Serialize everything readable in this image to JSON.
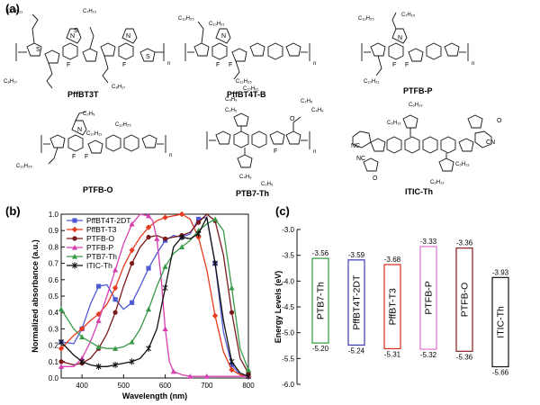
{
  "panels": {
    "a": {
      "label": "(a)",
      "molecules": [
        {
          "name": "PffBT3T"
        },
        {
          "name": "PffBT4T-B"
        },
        {
          "name": "PTFB-P"
        },
        {
          "name": "PTFB-O"
        },
        {
          "name": "PTB7-Th"
        },
        {
          "name": "ITIC-Th"
        }
      ],
      "repeat_n": "n",
      "side_chains": {
        "c10h21": "C₁₀H₂₁",
        "c12h25": "C₁₂H₂₅",
        "c7h15": "C₇H₁₅",
        "c8h17": "C₈H₁₇",
        "c2h5": "C₂H₅",
        "c4h9": "C₄H₉",
        "c6h13": "C₆H₁₃",
        "c11h23": "C₁₁H₂₃"
      },
      "atoms": {
        "s": "S",
        "n": "N",
        "f": "F",
        "o": "O",
        "cn": "CN",
        "nc": "NC"
      }
    },
    "b": {
      "label": "(b)"
    },
    "c": {
      "label": "(c)"
    }
  },
  "chart_data": [
    {
      "type": "line",
      "xlabel": "Wavelength (nm)",
      "ylabel": "Normalized absorbance (a.u.)",
      "xlim": [
        350,
        800
      ],
      "ylim": [
        0.0,
        1.0
      ],
      "xticks": [
        "400",
        "500",
        "600",
        "700",
        "800"
      ],
      "yticks": [
        "0.0",
        "0.1",
        "0.2",
        "0.3",
        "0.4",
        "0.5",
        "0.6",
        "0.7",
        "0.8",
        "0.9",
        "1.0"
      ],
      "legend_position": "top-left",
      "series": [
        {
          "name": "PffBT4T-2DT",
          "color": "#4f5bd5",
          "marker": "square",
          "x": [
            350,
            380,
            400,
            420,
            440,
            460,
            480,
            500,
            520,
            540,
            560,
            580,
            600,
            620,
            640,
            660,
            680,
            700,
            720,
            740,
            760,
            780,
            800
          ],
          "y": [
            0.22,
            0.21,
            0.3,
            0.45,
            0.56,
            0.57,
            0.48,
            0.42,
            0.46,
            0.56,
            0.67,
            0.76,
            0.84,
            0.87,
            0.86,
            0.88,
            0.97,
            0.98,
            0.7,
            0.28,
            0.08,
            0.02,
            0.01
          ]
        },
        {
          "name": "PffBT-T3",
          "color": "#e63b1f",
          "marker": "diamond",
          "x": [
            350,
            380,
            400,
            420,
            440,
            460,
            480,
            500,
            520,
            540,
            560,
            580,
            600,
            620,
            640,
            660,
            680,
            700,
            720,
            740,
            760,
            780,
            800
          ],
          "y": [
            0.18,
            0.26,
            0.3,
            0.35,
            0.39,
            0.45,
            0.55,
            0.68,
            0.78,
            0.86,
            0.92,
            0.96,
            0.98,
            0.99,
            1.0,
            0.97,
            0.86,
            0.66,
            0.38,
            0.16,
            0.05,
            0.02,
            0.01
          ]
        },
        {
          "name": "PTFB-O",
          "color": "#7a1a1a",
          "marker": "circle",
          "x": [
            350,
            380,
            400,
            420,
            440,
            460,
            480,
            500,
            520,
            540,
            560,
            580,
            600,
            620,
            640,
            660,
            680,
            700,
            720,
            740,
            760,
            780,
            800
          ],
          "y": [
            0.1,
            0.08,
            0.09,
            0.12,
            0.18,
            0.27,
            0.4,
            0.56,
            0.7,
            0.8,
            0.86,
            0.87,
            0.85,
            0.86,
            0.87,
            0.89,
            0.95,
            1.0,
            0.96,
            0.75,
            0.4,
            0.12,
            0.03
          ]
        },
        {
          "name": "PTFB-P",
          "color": "#d63fb0",
          "marker": "triangle",
          "x": [
            350,
            380,
            400,
            420,
            440,
            460,
            480,
            500,
            520,
            540,
            560,
            570,
            580,
            590,
            600,
            610,
            620,
            640,
            660,
            680,
            700,
            750,
            800
          ],
          "y": [
            0.07,
            0.07,
            0.12,
            0.22,
            0.35,
            0.5,
            0.66,
            0.82,
            0.94,
            1.0,
            0.99,
            0.96,
            0.85,
            0.62,
            0.3,
            0.1,
            0.04,
            0.02,
            0.01,
            0.01,
            0.01,
            0.01,
            0.01
          ]
        },
        {
          "name": "PTB7-Th",
          "color": "#3a9a4a",
          "marker": "triangle",
          "x": [
            350,
            380,
            400,
            420,
            440,
            460,
            480,
            500,
            520,
            540,
            560,
            580,
            600,
            620,
            640,
            660,
            680,
            700,
            720,
            740,
            760,
            780,
            800
          ],
          "y": [
            0.42,
            0.3,
            0.25,
            0.22,
            0.19,
            0.18,
            0.18,
            0.19,
            0.22,
            0.3,
            0.42,
            0.56,
            0.68,
            0.76,
            0.8,
            0.84,
            0.9,
            0.94,
            0.97,
            0.9,
            0.55,
            0.18,
            0.05
          ]
        },
        {
          "name": "ITIC-Th",
          "color": "#111111",
          "marker": "star",
          "x": [
            350,
            380,
            400,
            420,
            440,
            460,
            480,
            500,
            520,
            540,
            560,
            580,
            600,
            620,
            640,
            660,
            680,
            700,
            720,
            740,
            760,
            780,
            800
          ],
          "y": [
            0.22,
            0.14,
            0.1,
            0.08,
            0.07,
            0.07,
            0.08,
            0.09,
            0.1,
            0.12,
            0.18,
            0.3,
            0.55,
            0.8,
            0.86,
            0.85,
            0.88,
            0.98,
            0.7,
            0.35,
            0.1,
            0.03,
            0.01
          ]
        }
      ]
    },
    {
      "type": "bar",
      "ylabel": "Energy Levels (eV)",
      "ylim": [
        -6.0,
        -3.0
      ],
      "yticks": [
        "-3.0",
        "-3.5",
        "-4.0",
        "-4.5",
        "-5.0",
        "-5.5",
        "-6.0"
      ],
      "categories": [
        "PTB7-Th",
        "PffBT4T-2DT",
        "PffBT-T3",
        "PTFB-P",
        "PTFB-O",
        "ITIC-Th"
      ],
      "lumo": [
        -3.56,
        -3.59,
        -3.68,
        -3.33,
        -3.36,
        -3.93
      ],
      "homo": [
        -5.2,
        -5.24,
        -5.31,
        -5.32,
        -5.36,
        -5.66
      ],
      "lumo_labels": [
        "-3.56",
        "-3.59",
        "-3.68",
        "-3.33",
        "-3.36",
        "-3.93"
      ],
      "homo_labels": [
        "-5.20",
        "-5.24",
        "-5.31",
        "-5.32",
        "-5.36",
        "-5.66"
      ],
      "colors": [
        "#2e9a3a",
        "#3a3ab0",
        "#d62a1a",
        "#e070d8",
        "#8b1a1a",
        "#111111"
      ]
    }
  ]
}
